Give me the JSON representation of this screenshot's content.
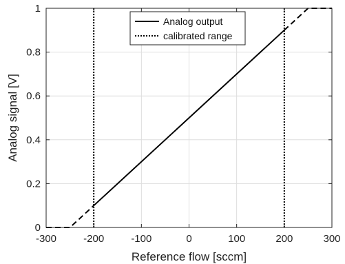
{
  "chart_data": {
    "type": "line",
    "title": "",
    "xlabel": "Reference flow [sccm]",
    "ylabel": "Analog signal [V]",
    "xlim": [
      -300,
      300
    ],
    "ylim": [
      0,
      1
    ],
    "x_ticks": [
      -300,
      -200,
      -100,
      0,
      100,
      200,
      300
    ],
    "y_ticks": [
      0,
      0.2,
      0.4,
      0.6,
      0.8,
      1
    ],
    "x_tick_labels": [
      "-300",
      "-200",
      "-100",
      "0",
      "100",
      "200",
      "300"
    ],
    "y_tick_labels": [
      "0",
      "0.2",
      "0.4",
      "0.6",
      "0.8",
      "1"
    ],
    "grid": true,
    "legend_position": "top-center",
    "series": [
      {
        "name": "Analog output",
        "style": "solid",
        "segments": [
          {
            "style": "dashed",
            "x": [
              -300,
              -250,
              -200
            ],
            "y": [
              0,
              0,
              0.1
            ]
          },
          {
            "style": "solid",
            "x": [
              -200,
              200
            ],
            "y": [
              0.1,
              0.9
            ]
          },
          {
            "style": "dashed",
            "x": [
              200,
              250,
              300
            ],
            "y": [
              0.9,
              1,
              1
            ]
          }
        ]
      },
      {
        "name": "calibrated range",
        "style": "dotted",
        "vertical_lines_x": [
          -200,
          200
        ]
      }
    ],
    "colors": {
      "line": "#000000",
      "grid": "#dddddd",
      "axis": "#222222"
    }
  }
}
